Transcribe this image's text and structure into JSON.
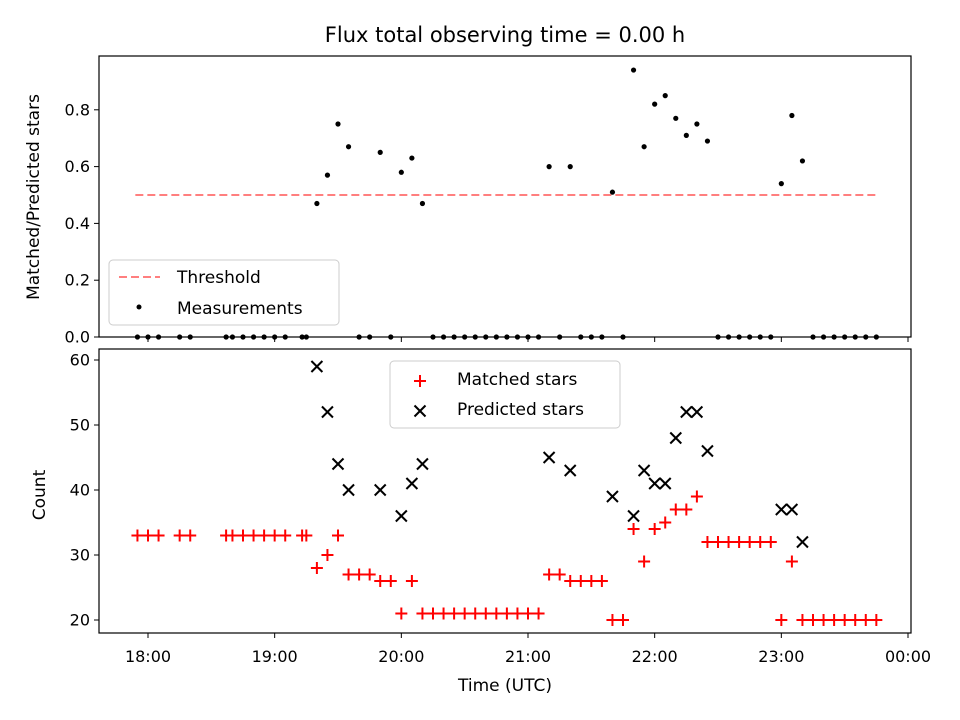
{
  "chart_data": [
    {
      "type": "scatter",
      "title": "Flux total observing time = 0.00 h",
      "xlabel": "",
      "ylabel": "Matched/Predicted stars",
      "ylim": [
        0,
        1.0
      ],
      "yticks": [
        "0.0",
        "0.2",
        "0.4",
        "0.6",
        "0.8"
      ],
      "ytick_values": [
        0,
        0.2,
        0.4,
        0.6,
        0.8
      ],
      "grid": false,
      "legend_position": "lower-left",
      "series": [
        {
          "name": "Threshold",
          "kind": "line",
          "style": "dashed",
          "color": "#ff7f7f",
          "points": [
            [
              "17:54",
              0.5
            ],
            [
              "23:46",
              0.5
            ]
          ]
        },
        {
          "name": "Measurements",
          "kind": "scatter",
          "marker": "dot",
          "color": "#000000",
          "points": [
            [
              "17:55",
              0
            ],
            [
              "18:00",
              0
            ],
            [
              "18:05",
              0
            ],
            [
              "18:15",
              0
            ],
            [
              "18:20",
              0
            ],
            [
              "18:37",
              0
            ],
            [
              "18:40",
              0
            ],
            [
              "18:45",
              0
            ],
            [
              "18:50",
              0
            ],
            [
              "18:55",
              0
            ],
            [
              "19:00",
              0
            ],
            [
              "19:05",
              0
            ],
            [
              "19:13",
              0
            ],
            [
              "19:15",
              0
            ],
            [
              "19:20",
              0.47
            ],
            [
              "19:25",
              0.57
            ],
            [
              "19:30",
              0.75
            ],
            [
              "19:35",
              0.67
            ],
            [
              "19:40",
              0
            ],
            [
              "19:45",
              0
            ],
            [
              "19:50",
              0.65
            ],
            [
              "19:55",
              0
            ],
            [
              "20:00",
              0.58
            ],
            [
              "20:05",
              0.63
            ],
            [
              "20:10",
              0.47
            ],
            [
              "20:15",
              0
            ],
            [
              "20:20",
              0
            ],
            [
              "20:25",
              0
            ],
            [
              "20:30",
              0
            ],
            [
              "20:35",
              0
            ],
            [
              "20:40",
              0
            ],
            [
              "20:45",
              0
            ],
            [
              "20:50",
              0
            ],
            [
              "20:55",
              0
            ],
            [
              "21:00",
              0
            ],
            [
              "21:05",
              0
            ],
            [
              "21:10",
              0.6
            ],
            [
              "21:15",
              0
            ],
            [
              "21:20",
              0.6
            ],
            [
              "21:25",
              0
            ],
            [
              "21:30",
              0
            ],
            [
              "21:35",
              0
            ],
            [
              "21:40",
              0.51
            ],
            [
              "21:45",
              0
            ],
            [
              "21:50",
              0.94
            ],
            [
              "21:55",
              0.67
            ],
            [
              "22:00",
              0.82
            ],
            [
              "22:05",
              0.85
            ],
            [
              "22:10",
              0.77
            ],
            [
              "22:15",
              0.71
            ],
            [
              "22:20",
              0.75
            ],
            [
              "22:25",
              0.69
            ],
            [
              "22:30",
              0
            ],
            [
              "22:35",
              0
            ],
            [
              "22:40",
              0
            ],
            [
              "22:45",
              0
            ],
            [
              "22:50",
              0
            ],
            [
              "22:55",
              0
            ],
            [
              "23:00",
              0.54
            ],
            [
              "23:05",
              0.78
            ],
            [
              "23:10",
              0.62
            ],
            [
              "23:15",
              0
            ],
            [
              "23:20",
              0
            ],
            [
              "23:25",
              0
            ],
            [
              "23:30",
              0
            ],
            [
              "23:35",
              0
            ],
            [
              "23:40",
              0
            ],
            [
              "23:45",
              0
            ]
          ]
        }
      ]
    },
    {
      "type": "scatter",
      "title": "",
      "xlabel": "Time (UTC)",
      "ylabel": "Count",
      "ylim": [
        18.3,
        61.2
      ],
      "yticks": [
        "20",
        "30",
        "40",
        "50",
        "60"
      ],
      "ytick_values": [
        20,
        30,
        40,
        50,
        60
      ],
      "xticks": [
        "18:00",
        "19:00",
        "20:00",
        "21:00",
        "22:00",
        "23:00",
        "00:00"
      ],
      "grid": false,
      "legend_position": "upper-center",
      "series": [
        {
          "name": "Matched stars",
          "kind": "scatter",
          "marker": "plus",
          "color": "#ff0000",
          "points": [
            [
              "17:55",
              33
            ],
            [
              "18:00",
              33
            ],
            [
              "18:05",
              33
            ],
            [
              "18:15",
              33
            ],
            [
              "18:20",
              33
            ],
            [
              "18:37",
              33
            ],
            [
              "18:40",
              33
            ],
            [
              "18:45",
              33
            ],
            [
              "18:50",
              33
            ],
            [
              "18:55",
              33
            ],
            [
              "19:00",
              33
            ],
            [
              "19:05",
              33
            ],
            [
              "19:13",
              33
            ],
            [
              "19:15",
              33
            ],
            [
              "19:20",
              28
            ],
            [
              "19:25",
              30
            ],
            [
              "19:30",
              33
            ],
            [
              "19:35",
              27
            ],
            [
              "19:40",
              27
            ],
            [
              "19:45",
              27
            ],
            [
              "19:50",
              26
            ],
            [
              "19:55",
              26
            ],
            [
              "20:00",
              21
            ],
            [
              "20:05",
              26
            ],
            [
              "20:10",
              21
            ],
            [
              "20:15",
              21
            ],
            [
              "20:20",
              21
            ],
            [
              "20:25",
              21
            ],
            [
              "20:30",
              21
            ],
            [
              "20:35",
              21
            ],
            [
              "20:40",
              21
            ],
            [
              "20:45",
              21
            ],
            [
              "20:50",
              21
            ],
            [
              "20:55",
              21
            ],
            [
              "21:00",
              21
            ],
            [
              "21:05",
              21
            ],
            [
              "21:10",
              27
            ],
            [
              "21:15",
              27
            ],
            [
              "21:20",
              26
            ],
            [
              "21:25",
              26
            ],
            [
              "21:30",
              26
            ],
            [
              "21:35",
              26
            ],
            [
              "21:40",
              20
            ],
            [
              "21:45",
              20
            ],
            [
              "21:50",
              34
            ],
            [
              "21:55",
              29
            ],
            [
              "22:00",
              34
            ],
            [
              "22:05",
              35
            ],
            [
              "22:10",
              37
            ],
            [
              "22:15",
              37
            ],
            [
              "22:20",
              39
            ],
            [
              "22:25",
              32
            ],
            [
              "22:30",
              32
            ],
            [
              "22:35",
              32
            ],
            [
              "22:40",
              32
            ],
            [
              "22:45",
              32
            ],
            [
              "22:50",
              32
            ],
            [
              "22:55",
              32
            ],
            [
              "23:00",
              20
            ],
            [
              "23:05",
              29
            ],
            [
              "23:10",
              20
            ],
            [
              "23:15",
              20
            ],
            [
              "23:20",
              20
            ],
            [
              "23:25",
              20
            ],
            [
              "23:30",
              20
            ],
            [
              "23:35",
              20
            ],
            [
              "23:40",
              20
            ],
            [
              "23:45",
              20
            ]
          ]
        },
        {
          "name": "Predicted stars",
          "kind": "scatter",
          "marker": "x",
          "color": "#000000",
          "points": [
            [
              "19:20",
              59
            ],
            [
              "19:25",
              52
            ],
            [
              "19:30",
              44
            ],
            [
              "19:35",
              40
            ],
            [
              "19:50",
              40
            ],
            [
              "20:00",
              36
            ],
            [
              "20:05",
              41
            ],
            [
              "20:10",
              44
            ],
            [
              "21:10",
              45
            ],
            [
              "21:20",
              43
            ],
            [
              "21:40",
              39
            ],
            [
              "21:50",
              36
            ],
            [
              "21:55",
              43
            ],
            [
              "22:00",
              41
            ],
            [
              "22:05",
              41
            ],
            [
              "22:10",
              48
            ],
            [
              "22:15",
              52
            ],
            [
              "22:20",
              52
            ],
            [
              "22:25",
              46
            ],
            [
              "23:00",
              37
            ],
            [
              "23:05",
              37
            ],
            [
              "23:10",
              32
            ]
          ]
        }
      ]
    }
  ]
}
